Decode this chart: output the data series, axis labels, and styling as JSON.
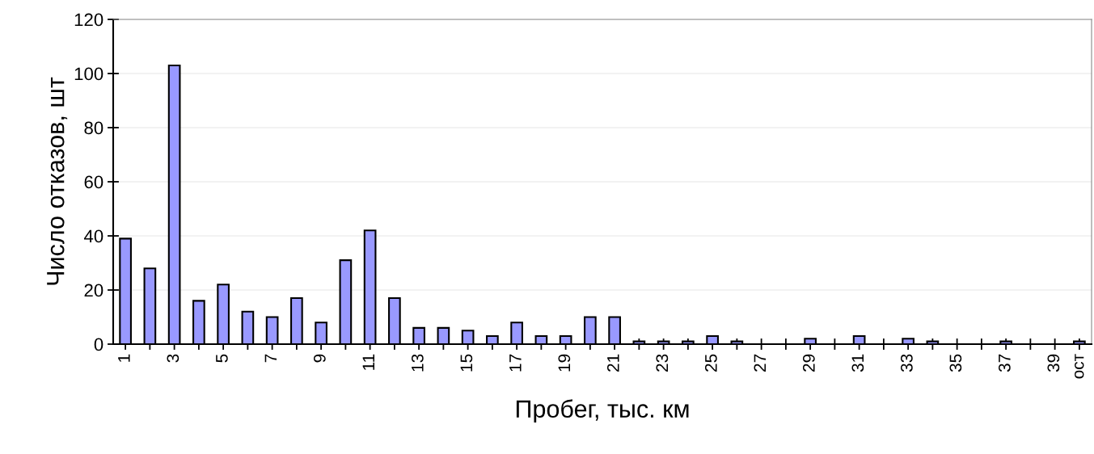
{
  "chart_data": {
    "type": "bar",
    "xlabel": "Пробег, тыс. км",
    "ylabel": "Число отказов, шт",
    "categories": [
      "1",
      null,
      "3",
      null,
      "5",
      null,
      "7",
      null,
      "9",
      null,
      "11",
      null,
      "13",
      null,
      "15",
      null,
      "17",
      null,
      "19",
      null,
      "21",
      null,
      "23",
      null,
      "25",
      null,
      "27",
      null,
      "29",
      null,
      "31",
      null,
      "33",
      null,
      "35",
      null,
      "37",
      null,
      "39",
      "ост"
    ],
    "values": [
      39,
      28,
      103,
      16,
      22,
      12,
      10,
      17,
      8,
      31,
      42,
      17,
      6,
      6,
      5,
      3,
      8,
      3,
      3,
      10,
      10,
      1,
      1,
      1,
      3,
      1,
      0,
      0,
      2,
      0,
      3,
      0,
      2,
      1,
      0,
      0,
      1,
      0,
      0,
      1
    ],
    "color": "#9999ff",
    "ylim": [
      0,
      120
    ],
    "yticks": [
      0,
      20,
      40,
      60,
      80,
      100,
      120
    ],
    "grid": "y",
    "legend": false
  }
}
